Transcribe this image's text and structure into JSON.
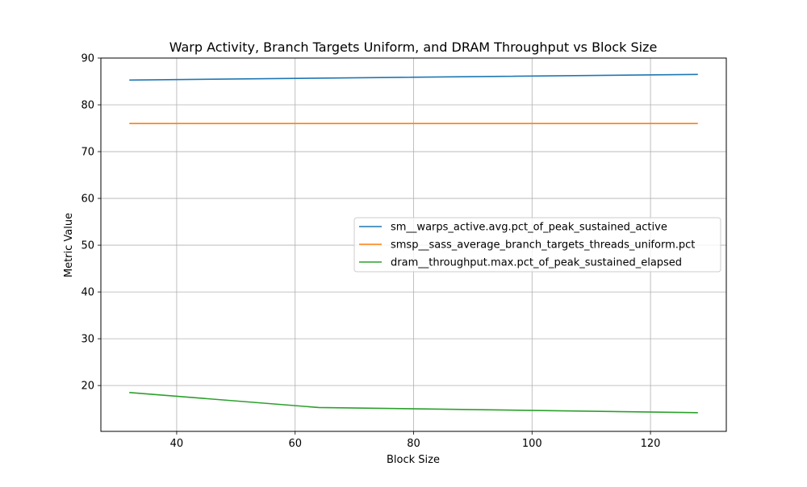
{
  "chart_data": {
    "type": "line",
    "title": "Warp Activity, Branch Targets Uniform, and DRAM Throughput vs Block Size",
    "xlabel": "Block Size",
    "ylabel": "Metric Value",
    "x": [
      32,
      64,
      128
    ],
    "xlim": [
      27.2,
      132.8
    ],
    "ylim": [
      10.2,
      90
    ],
    "xticks": [
      40,
      60,
      80,
      100,
      120
    ],
    "yticks": [
      20,
      30,
      40,
      50,
      60,
      70,
      80,
      90
    ],
    "grid": true,
    "legend_position": "center-right",
    "series": [
      {
        "name": "sm__warps_active.avg.pct_of_peak_sustained_active",
        "values": [
          85.3,
          85.7,
          86.5
        ],
        "color": "#1f77b4"
      },
      {
        "name": "smsp__sass_average_branch_targets_threads_uniform.pct",
        "values": [
          76.0,
          76.0,
          76.0
        ],
        "color": "#ff7f0e"
      },
      {
        "name": "dram__throughput.max.pct_of_peak_sustained_elapsed",
        "values": [
          18.5,
          15.3,
          14.2
        ],
        "color": "#2ca02c"
      }
    ]
  }
}
